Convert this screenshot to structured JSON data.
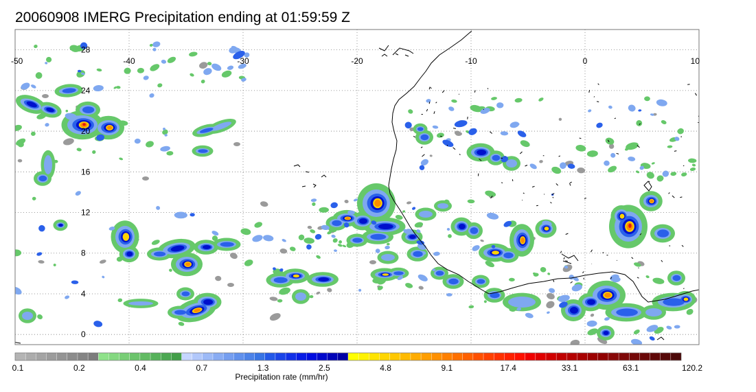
{
  "title": "20060908 IMERG Precipitation ending at 01:59:59 Z",
  "map": {
    "lon_range": [
      -50,
      10
    ],
    "lat_range": [
      -1,
      30
    ],
    "lon_ticks": [
      "-50",
      "-40",
      "-30",
      "-20",
      "-10",
      "0",
      "10"
    ],
    "lat_ticks": [
      "28",
      "24",
      "20",
      "16",
      "12",
      "8",
      "4",
      "0"
    ],
    "grid": "dotted",
    "coastline_color": "#000000"
  },
  "colorbar": {
    "label": "Precipitation rate (mm/hr)",
    "tick_labels": [
      "0.1",
      "0.2",
      "0.4",
      "0.7",
      "1.3",
      "2.5",
      "4.8",
      "9.1",
      "17.4",
      "33.1",
      "63.1",
      "120.2"
    ],
    "colors": [
      "#b4b4b4",
      "#acacac",
      "#a4a4a4",
      "#9c9c9c",
      "#949494",
      "#8c8c8c",
      "#848484",
      "#7c7c7c",
      "#8fe28a",
      "#84d880",
      "#78ce76",
      "#6cc46c",
      "#62bb63",
      "#56b25a",
      "#4ca852",
      "#429e48",
      "#c6d6ff",
      "#b2c8fb",
      "#9dbaf7",
      "#89acf3",
      "#759ef0",
      "#6090ec",
      "#4c82e8",
      "#3874e4",
      "#2358e8",
      "#1a44e8",
      "#1130e8",
      "#081ce6",
      "#000ce0",
      "#0008cc",
      "#0004b8",
      "#0000a4",
      "#ffff00",
      "#fff200",
      "#ffe400",
      "#ffd600",
      "#ffc800",
      "#ffba00",
      "#ffac00",
      "#ff9e00",
      "#ff9000",
      "#ff8000",
      "#ff7000",
      "#ff6000",
      "#ff5000",
      "#ff4000",
      "#ff3000",
      "#ff2000",
      "#ff1000",
      "#f00000",
      "#e00000",
      "#d00000",
      "#c00000",
      "#b40000",
      "#a80000",
      "#9c0000",
      "#900000",
      "#880808",
      "#7e0808",
      "#740808",
      "#6a0808",
      "#600808",
      "#560808",
      "#4c0808"
    ]
  },
  "rain_palette": {
    "gray": "#9a9a9a",
    "green": "#66c86a",
    "light_blue": "#7fa8f0",
    "blue": "#2a60ea",
    "dark_blue": "#0010cc",
    "yellow": "#ffd200",
    "orange": "#ff8c00",
    "red": "#e51b10"
  }
}
